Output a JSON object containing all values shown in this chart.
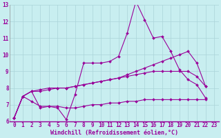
{
  "xlabel": "Windchill (Refroidissement éolien,°C)",
  "background_color": "#c8eef0",
  "grid_color": "#aad4d8",
  "line_color": "#990099",
  "xlim": [
    -0.5,
    23.5
  ],
  "ylim": [
    6,
    13
  ],
  "xticks": [
    0,
    1,
    2,
    3,
    4,
    5,
    6,
    7,
    8,
    9,
    10,
    11,
    12,
    13,
    14,
    15,
    16,
    17,
    18,
    19,
    20,
    21,
    22,
    23
  ],
  "yticks": [
    6,
    7,
    8,
    9,
    10,
    11,
    12,
    13
  ],
  "series1_y": [
    6.2,
    7.5,
    7.8,
    6.8,
    6.9,
    6.8,
    6.1,
    7.6,
    9.5,
    9.5,
    9.5,
    9.6,
    9.9,
    11.3,
    13.2,
    12.1,
    11.0,
    11.1,
    10.2,
    9.1,
    8.5,
    8.2,
    7.4
  ],
  "series2_y": [
    6.2,
    7.5,
    7.8,
    7.8,
    7.9,
    8.0,
    8.0,
    8.1,
    8.2,
    8.3,
    8.4,
    8.5,
    8.6,
    8.8,
    9.0,
    9.2,
    9.4,
    9.6,
    9.8,
    10.0,
    10.2,
    9.5,
    8.1
  ],
  "series3_y": [
    6.2,
    7.5,
    7.8,
    7.9,
    8.0,
    8.0,
    8.0,
    8.1,
    8.2,
    8.3,
    8.4,
    8.5,
    8.6,
    8.7,
    8.8,
    8.9,
    9.0,
    9.0,
    9.0,
    9.0,
    9.0,
    8.7,
    8.1
  ],
  "series4_y": [
    6.2,
    7.5,
    7.2,
    6.9,
    6.9,
    6.9,
    6.8,
    6.8,
    6.9,
    7.0,
    7.0,
    7.1,
    7.1,
    7.2,
    7.2,
    7.3,
    7.3,
    7.3,
    7.3,
    7.3,
    7.3,
    7.3,
    7.3
  ],
  "tick_fontsize": 5.5,
  "label_fontsize": 6.0
}
